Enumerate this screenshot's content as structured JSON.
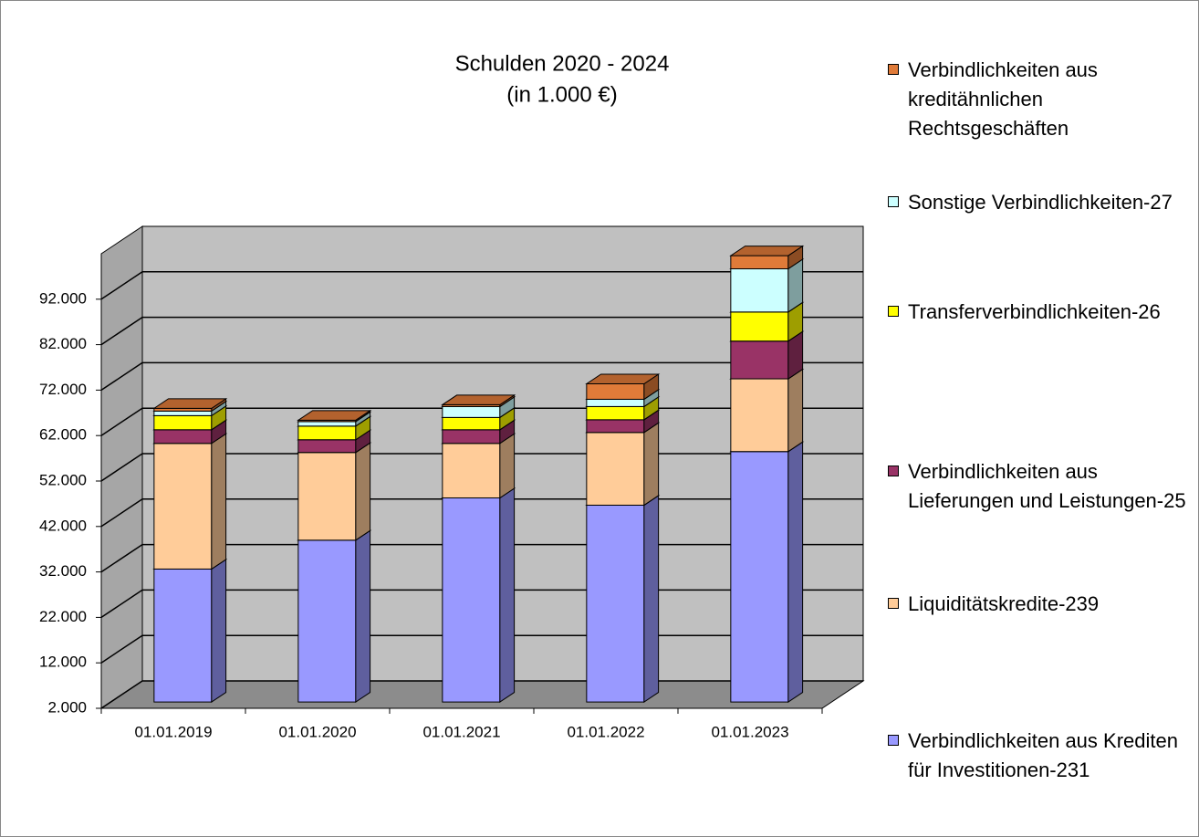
{
  "chart_data": {
    "type": "bar3d_stacked",
    "title": "Schulden 2020 - 2024",
    "subtitle": "(in 1.000 €)",
    "categories": [
      "01.01.2019",
      "01.01.2020",
      "01.01.2021",
      "01.01.2022",
      "01.01.2023"
    ],
    "series": [
      {
        "name": "Verbindlichkeiten aus Krediten für Investitionen-231",
        "color": "#9999ff",
        "values": [
          31250,
          37600,
          46900,
          45300,
          57100
        ]
      },
      {
        "name": "Liquiditätskredite-239",
        "color": "#ffcc99",
        "values": [
          27650,
          19300,
          12000,
          16000,
          16000
        ]
      },
      {
        "name": "Verbindlichkeiten aus Lieferungen und Leistungen-25",
        "color": "#993366",
        "values": [
          3000,
          2800,
          3000,
          2800,
          8300
        ]
      },
      {
        "name": "Transferverbindlichkeiten-26",
        "color": "#ffff00",
        "values": [
          3100,
          3000,
          2700,
          2900,
          6400
        ]
      },
      {
        "name": "Sonstige Verbindlichkeiten-27",
        "color": "#ccffff",
        "values": [
          1000,
          1000,
          2400,
          1600,
          9500
        ]
      },
      {
        "name": "Verbindlichkeiten aus kreditähnlichen Rechtsgeschäften",
        "color": "#e07b39",
        "values": [
          600,
          300,
          400,
          3400,
          2900
        ]
      }
    ],
    "ylim": [
      2000,
      102000
    ],
    "yticks": [
      {
        "value": 2000,
        "label": "2.000"
      },
      {
        "value": 12000,
        "label": "12.000"
      },
      {
        "value": 22000,
        "label": "22.000"
      },
      {
        "value": 32000,
        "label": "32.000"
      },
      {
        "value": 42000,
        "label": "42.000"
      },
      {
        "value": 52000,
        "label": "52.000"
      },
      {
        "value": 62000,
        "label": "62.000"
      },
      {
        "value": 72000,
        "label": "72.000"
      },
      {
        "value": 82000,
        "label": "82.000"
      },
      {
        "value": 92000,
        "label": "92.000"
      }
    ],
    "grid": true,
    "legend": "right"
  }
}
